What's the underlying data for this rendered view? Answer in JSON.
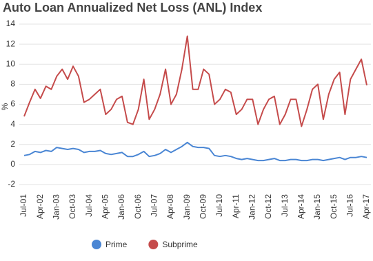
{
  "chart_data": {
    "type": "line",
    "title": "Auto Loan Annualized Net Loss (ANL) Index",
    "y_label": "%",
    "categories": [
      "Jul-01",
      null,
      null,
      "Apr-02",
      null,
      null,
      "Jan-03",
      null,
      null,
      "Oct-03",
      null,
      null,
      "Jul-04",
      null,
      null,
      "Apr-05",
      null,
      null,
      "Jan-06",
      null,
      null,
      "Oct-06",
      null,
      null,
      "Jul-07",
      null,
      null,
      "Apr-08",
      null,
      null,
      "Jan-09",
      null,
      null,
      "Oct-09",
      null,
      null,
      "Jul-10",
      null,
      null,
      "Apr-11",
      null,
      null,
      "Jan-12",
      null,
      null,
      "Oct-12",
      null,
      null,
      "Jul-13",
      null,
      null,
      "Apr-14",
      null,
      null,
      "Jan-15",
      null,
      null,
      "Oct-15",
      null,
      null,
      "Jul-16",
      null,
      null,
      "Apr-17"
    ],
    "series": [
      {
        "name": "Prime",
        "color": "#4a86d4",
        "values": [
          0.9,
          1.0,
          1.3,
          1.2,
          1.4,
          1.3,
          1.7,
          1.6,
          1.5,
          1.6,
          1.5,
          1.2,
          1.3,
          1.3,
          1.4,
          1.1,
          1.0,
          1.1,
          1.2,
          0.8,
          0.8,
          1.0,
          1.3,
          0.8,
          0.9,
          1.1,
          1.5,
          1.2,
          1.5,
          1.8,
          2.2,
          1.8,
          1.7,
          1.7,
          1.6,
          0.9,
          0.8,
          0.9,
          0.8,
          0.6,
          0.5,
          0.6,
          0.5,
          0.4,
          0.4,
          0.5,
          0.6,
          0.4,
          0.4,
          0.5,
          0.5,
          0.4,
          0.4,
          0.5,
          0.5,
          0.4,
          0.5,
          0.6,
          0.7,
          0.5,
          0.7,
          0.7,
          0.8,
          0.7
        ]
      },
      {
        "name": "Subprime",
        "color": "#c54b4b",
        "values": [
          4.8,
          6.2,
          7.5,
          6.6,
          7.8,
          7.5,
          8.8,
          9.5,
          8.5,
          9.8,
          8.8,
          6.2,
          6.5,
          7.0,
          7.5,
          5.0,
          5.5,
          6.5,
          6.8,
          4.2,
          4.0,
          5.5,
          8.5,
          4.5,
          5.5,
          7.0,
          9.5,
          6.0,
          7.0,
          9.5,
          12.8,
          7.5,
          7.5,
          9.5,
          9.0,
          6.0,
          6.5,
          7.5,
          7.2,
          5.0,
          5.5,
          6.5,
          6.5,
          4.0,
          5.5,
          6.5,
          6.8,
          4.0,
          5.0,
          6.5,
          6.5,
          3.8,
          5.5,
          7.5,
          8.0,
          4.5,
          7.0,
          8.5,
          9.2,
          5.0,
          8.5,
          9.5,
          10.5,
          7.9
        ]
      }
    ],
    "ylim": [
      -2,
      14
    ],
    "yticks": [
      -2,
      0,
      2,
      4,
      6,
      8,
      10,
      12,
      14
    ],
    "grid": true
  }
}
